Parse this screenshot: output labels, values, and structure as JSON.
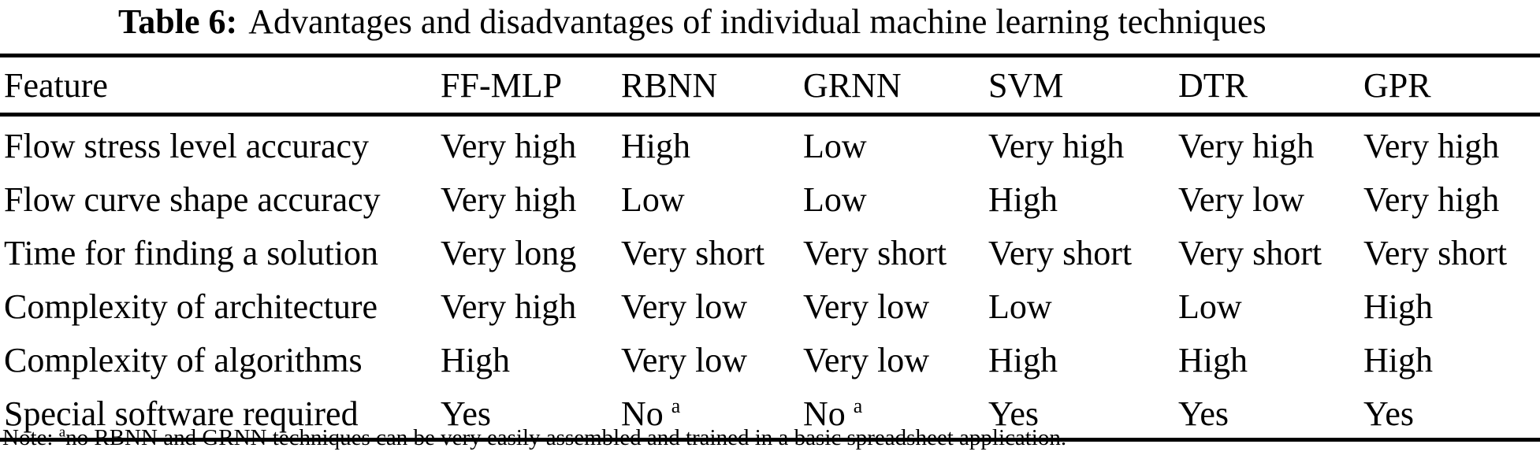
{
  "caption": {
    "label": "Table 6:",
    "text": "Advantages and disadvantages of individual machine learning techniques"
  },
  "table": {
    "columns": [
      "Feature",
      "FF-MLP",
      "RBNN",
      "GRNN",
      "SVM",
      "DTR",
      "GPR"
    ],
    "rows": [
      {
        "feature": "Flow stress level accuracy",
        "values": [
          "Very high",
          "High",
          "Low",
          "Very high",
          "Very high",
          "Very high"
        ]
      },
      {
        "feature": "Flow curve shape accuracy",
        "values": [
          "Very high",
          "Low",
          "Low",
          "High",
          "Very low",
          "Very high"
        ]
      },
      {
        "feature": "Time for finding a solution",
        "values": [
          "Very long",
          "Very short",
          "Very short",
          "Very short",
          "Very short",
          "Very short"
        ]
      },
      {
        "feature": "Complexity of architecture",
        "values": [
          "Very high",
          "Very low",
          "Very low",
          "Low",
          "Low",
          "High"
        ]
      },
      {
        "feature": "Complexity of algorithms",
        "values": [
          "High",
          "Very low",
          "Very low",
          "High",
          "High",
          "High"
        ]
      },
      {
        "feature": "Special software required",
        "values": [
          "Yes",
          "No ^a",
          "No ^a",
          "Yes",
          "Yes",
          "Yes"
        ]
      }
    ]
  },
  "note": {
    "prefix": "Note: ",
    "marker": "a",
    "text": "no RBNN and GRNN techniques can be very easily assembled and trained in a basic spreadsheet application."
  },
  "colors": {
    "text": "#000000",
    "background": "#ffffff",
    "rule": "#000000"
  }
}
